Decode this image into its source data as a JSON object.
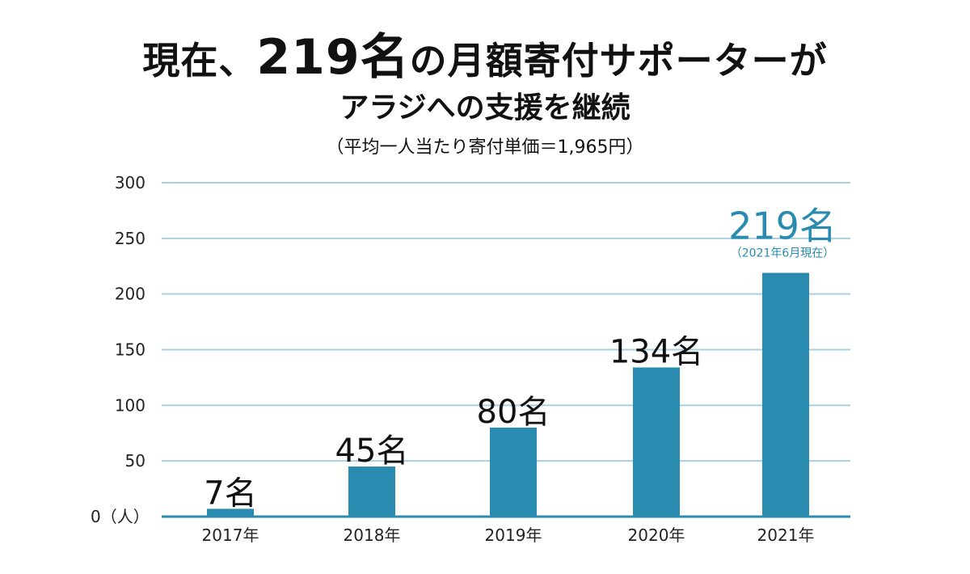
{
  "header": {
    "title_prefix": "現在、",
    "title_number": "219名",
    "title_suffix": "の月額寄付サポーターが",
    "subtitle": "アラジへの支援を継続",
    "note": "（平均一人当たり寄付単価＝1,965円）"
  },
  "chart_data": {
    "type": "bar",
    "categories": [
      "2017年",
      "2018年",
      "2019年",
      "2020年",
      "2021年"
    ],
    "values": [
      7,
      45,
      80,
      134,
      219
    ],
    "data_labels": [
      "7名",
      "45名",
      "80名",
      "134名",
      "219名"
    ],
    "highlight_sublabel": "（2021年6月現在）",
    "ylim": [
      0,
      300
    ],
    "yticks": [
      0,
      50,
      100,
      150,
      200,
      250,
      300
    ],
    "ytick_labels": [
      "0（人）",
      "50",
      "100",
      "150",
      "200",
      "250",
      "300"
    ],
    "grid": true
  },
  "colors": {
    "bar": "#2a8bb0",
    "grid": "#a9d0de",
    "highlight_label": "#2a8bb0"
  }
}
